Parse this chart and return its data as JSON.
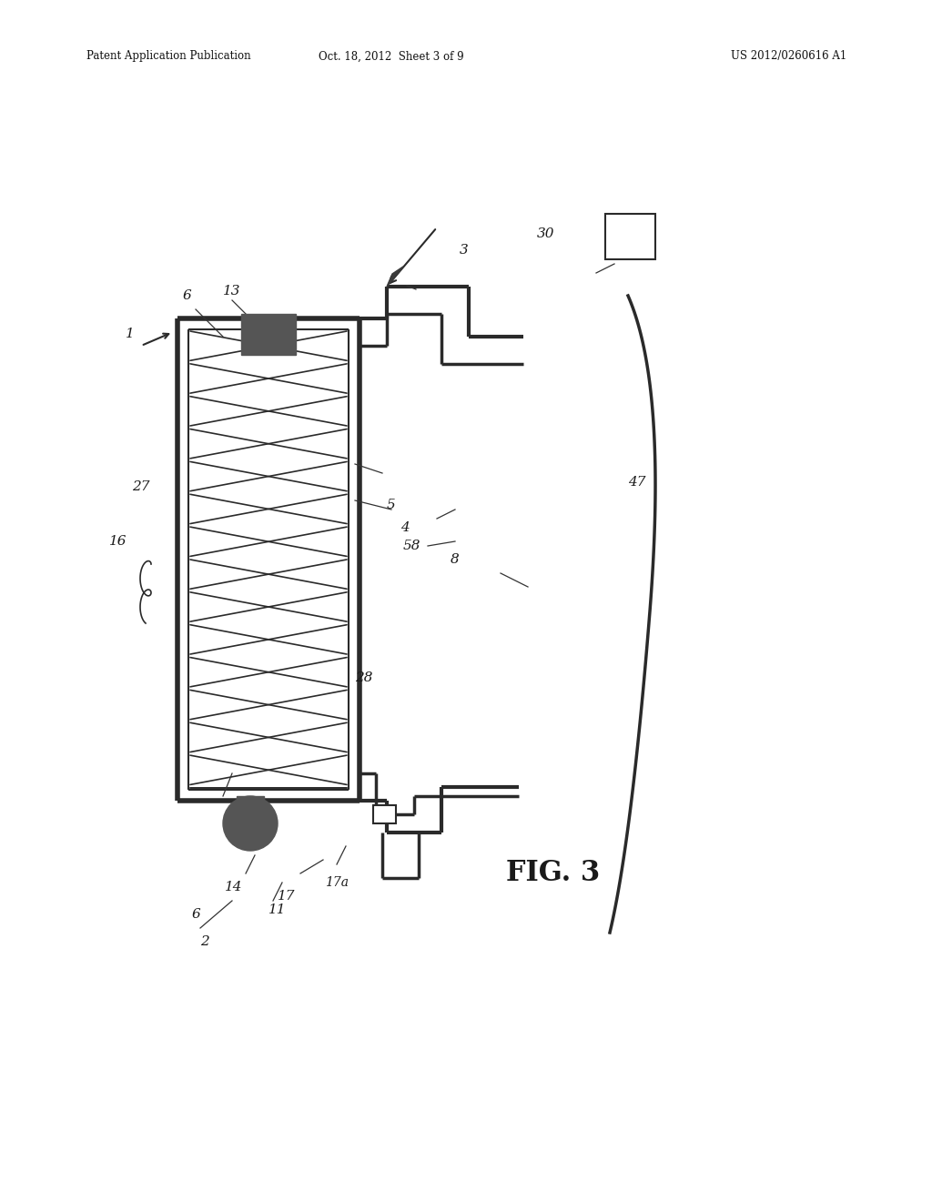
{
  "bg_color": "#ffffff",
  "header_left": "Patent Application Publication",
  "header_center": "Oct. 18, 2012  Sheet 3 of 9",
  "header_right": "US 2012/0260616 A1",
  "fig_label": "FIG. 3",
  "line_color": "#2a2a2a",
  "dark_fill": "#3a3a3a",
  "dark_fill2": "#555555"
}
